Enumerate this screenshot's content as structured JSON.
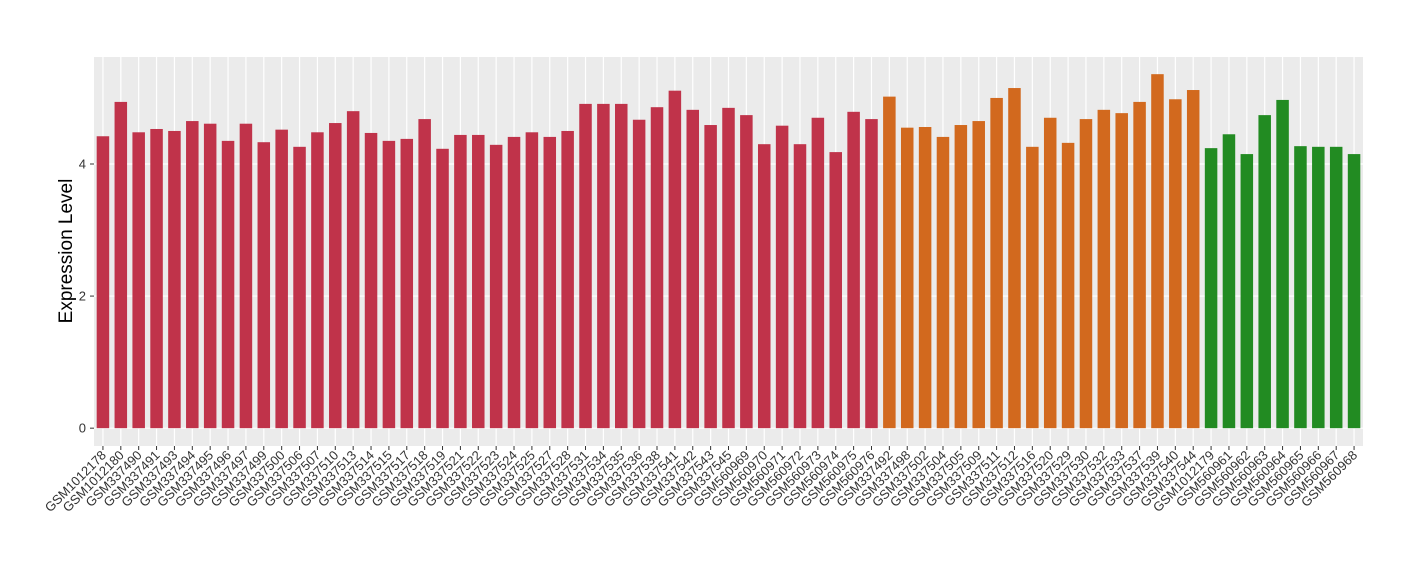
{
  "chart_data": {
    "type": "bar",
    "y_label": "Expression Level",
    "categories": [
      "GSM1012178",
      "GSM1012180",
      "GSM337490",
      "GSM337491",
      "GSM337493",
      "GSM337494",
      "GSM337495",
      "GSM337496",
      "GSM337497",
      "GSM337499",
      "GSM337500",
      "GSM337506",
      "GSM337507",
      "GSM337510",
      "GSM337513",
      "GSM337514",
      "GSM337515",
      "GSM337517",
      "GSM337518",
      "GSM337519",
      "GSM337521",
      "GSM337522",
      "GSM337523",
      "GSM337524",
      "GSM337525",
      "GSM337527",
      "GSM337528",
      "GSM337531",
      "GSM337534",
      "GSM337535",
      "GSM337536",
      "GSM337538",
      "GSM337541",
      "GSM337542",
      "GSM337543",
      "GSM337545",
      "GSM560969",
      "GSM560970",
      "GSM560971",
      "GSM560972",
      "GSM560973",
      "GSM560974",
      "GSM560975",
      "GSM560976",
      "GSM337492",
      "GSM337498",
      "GSM337502",
      "GSM337504",
      "GSM337505",
      "GSM337509",
      "GSM337511",
      "GSM337512",
      "GSM337516",
      "GSM337520",
      "GSM337529",
      "GSM337530",
      "GSM337532",
      "GSM337533",
      "GSM337537",
      "GSM337539",
      "GSM337540",
      "GSM337544",
      "GSM1012179",
      "GSM560961",
      "GSM560962",
      "GSM560963",
      "GSM560964",
      "GSM560965",
      "GSM560966",
      "GSM560967",
      "GSM560968"
    ],
    "values": [
      4.42,
      4.94,
      4.48,
      4.53,
      4.5,
      4.65,
      4.61,
      4.35,
      4.61,
      4.33,
      4.52,
      4.26,
      4.48,
      4.62,
      4.8,
      4.47,
      4.35,
      4.38,
      4.68,
      4.23,
      4.44,
      4.44,
      4.29,
      4.41,
      4.48,
      4.41,
      4.5,
      4.91,
      4.91,
      4.91,
      4.67,
      4.86,
      5.11,
      4.82,
      4.59,
      4.85,
      4.74,
      4.3,
      4.58,
      4.3,
      4.7,
      4.18,
      4.79,
      4.68,
      5.02,
      4.55,
      4.56,
      4.41,
      4.59,
      4.65,
      5.0,
      5.15,
      4.26,
      4.7,
      4.32,
      4.68,
      4.82,
      4.77,
      4.94,
      5.36,
      4.98,
      5.12,
      4.24,
      4.45,
      4.15,
      4.74,
      4.97,
      4.27,
      4.26,
      4.26,
      4.15
    ],
    "colors": [
      "#c0334a",
      "#c0334a",
      "#c0334a",
      "#c0334a",
      "#c0334a",
      "#c0334a",
      "#c0334a",
      "#c0334a",
      "#c0334a",
      "#c0334a",
      "#c0334a",
      "#c0334a",
      "#c0334a",
      "#c0334a",
      "#c0334a",
      "#c0334a",
      "#c0334a",
      "#c0334a",
      "#c0334a",
      "#c0334a",
      "#c0334a",
      "#c0334a",
      "#c0334a",
      "#c0334a",
      "#c0334a",
      "#c0334a",
      "#c0334a",
      "#c0334a",
      "#c0334a",
      "#c0334a",
      "#c0334a",
      "#c0334a",
      "#c0334a",
      "#c0334a",
      "#c0334a",
      "#c0334a",
      "#c0334a",
      "#c0334a",
      "#c0334a",
      "#c0334a",
      "#c0334a",
      "#c0334a",
      "#c0334a",
      "#c0334a",
      "#d2691e",
      "#d2691e",
      "#d2691e",
      "#d2691e",
      "#d2691e",
      "#d2691e",
      "#d2691e",
      "#d2691e",
      "#d2691e",
      "#d2691e",
      "#d2691e",
      "#d2691e",
      "#d2691e",
      "#d2691e",
      "#d2691e",
      "#d2691e",
      "#d2691e",
      "#d2691e",
      "#228b22",
      "#228b22",
      "#228b22",
      "#228b22",
      "#228b22",
      "#228b22",
      "#228b22",
      "#228b22",
      "#228b22"
    ],
    "ylim": [
      -0.27,
      5.62
    ],
    "yticks": [
      0,
      2,
      4
    ],
    "grid": true
  }
}
